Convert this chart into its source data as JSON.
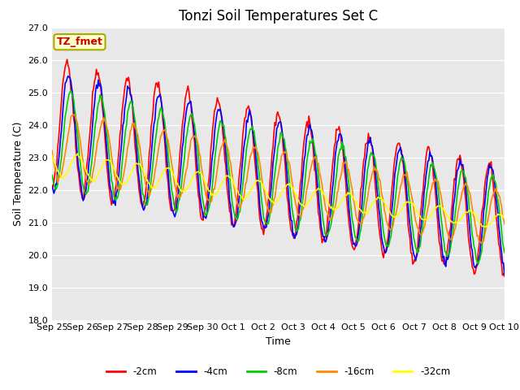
{
  "title": "Tonzi Soil Temperatures Set C",
  "xlabel": "Time",
  "ylabel": "Soil Temperature (C)",
  "ylim": [
    18.0,
    27.0
  ],
  "yticks": [
    18.0,
    19.0,
    20.0,
    21.0,
    22.0,
    23.0,
    24.0,
    25.0,
    26.0,
    27.0
  ],
  "xtick_labels": [
    "Sep 25",
    "Sep 26",
    "Sep 27",
    "Sep 28",
    "Sep 29",
    "Sep 30",
    "Oct 1",
    "Oct 2",
    "Oct 3",
    "Oct 4",
    "Oct 5",
    "Oct 6",
    "Oct 7",
    "Oct 8",
    "Oct 9",
    "Oct 10"
  ],
  "colors": {
    "-2cm": "#ff0000",
    "-4cm": "#0000ff",
    "-8cm": "#00cc00",
    "-16cm": "#ff8800",
    "-32cm": "#ffff00"
  },
  "legend_label": "TZ_fmet",
  "legend_box_facecolor": "#ffffcc",
  "legend_box_edgecolor": "#aaaa00",
  "plot_bg_color": "#e8e8e8",
  "title_fontsize": 12,
  "axis_label_fontsize": 9,
  "tick_fontsize": 8,
  "line_width": 1.2,
  "n_points": 480
}
